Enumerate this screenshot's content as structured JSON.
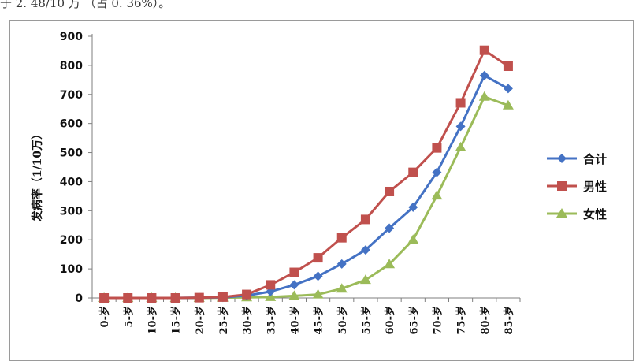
{
  "header": {
    "text": "于 2. 48/10 万 （占 0. 36%）。"
  },
  "chart_data": {
    "type": "line",
    "title": "",
    "xlabel": "",
    "ylabel": "发病率（1/10万）",
    "ylim": [
      0,
      900
    ],
    "yticks": [
      0,
      100,
      200,
      300,
      400,
      500,
      600,
      700,
      800,
      900
    ],
    "categories": [
      "0-岁",
      "5-岁",
      "10-岁",
      "15-岁",
      "20-岁",
      "25-岁",
      "30-岁",
      "35-岁",
      "40-岁",
      "45-岁",
      "50-岁",
      "55-岁",
      "60-岁",
      "65-岁",
      "70-岁",
      "75-岁",
      "80-岁",
      "85-岁"
    ],
    "grid": false,
    "legend_position": "right",
    "series": [
      {
        "name": "合计",
        "color": "#4472c4",
        "marker": "diamond",
        "values": [
          0,
          0,
          0,
          0,
          1,
          2,
          8,
          22,
          45,
          75,
          117,
          165,
          240,
          312,
          432,
          590,
          765,
          720
        ]
      },
      {
        "name": "男性",
        "color": "#c0504d",
        "marker": "square",
        "values": [
          0,
          0,
          0,
          0,
          1,
          3,
          12,
          45,
          88,
          138,
          207,
          270,
          366,
          432,
          516,
          671,
          852,
          797
        ]
      },
      {
        "name": "女性",
        "color": "#9bbb59",
        "marker": "triangle",
        "values": [
          0,
          0,
          0,
          0,
          0,
          1,
          2,
          3,
          7,
          12,
          32,
          62,
          116,
          200,
          352,
          518,
          692,
          662
        ]
      }
    ]
  }
}
